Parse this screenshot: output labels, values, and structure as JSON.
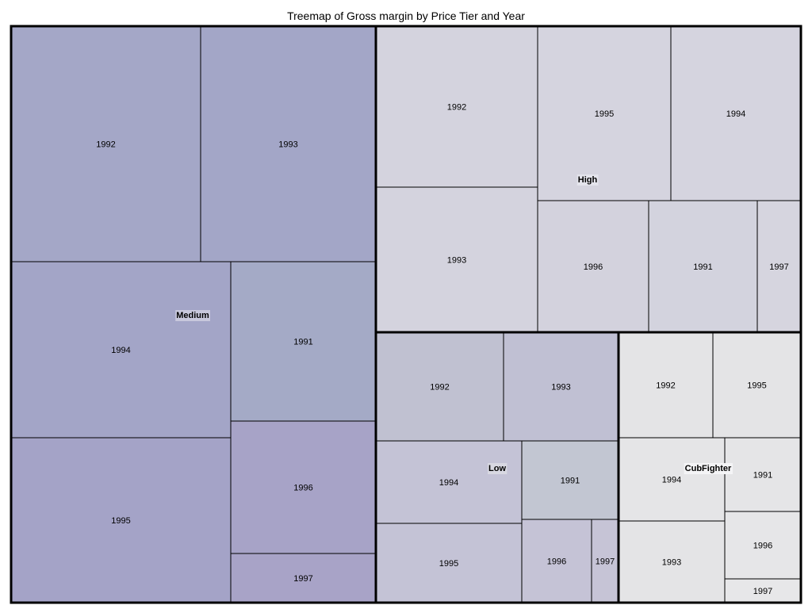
{
  "title": "Treemap of Gross margin by Price Tier and Year",
  "chart_data": {
    "type": "treemap",
    "title": "Treemap of Gross margin by Price Tier and Year",
    "groups": [
      {
        "name": "Medium",
        "label_bg": "#c8c8dc",
        "cells": [
          {
            "label": "1992",
            "value": 7.1,
            "color": "#a4a7c7"
          },
          {
            "label": "1993",
            "value": 6.6,
            "color": "#a3a6c7"
          },
          {
            "label": "1994",
            "value": 6.1,
            "color": "#a3a5c7"
          },
          {
            "label": "1991",
            "value": 3.6,
            "color": "#a4aac6"
          },
          {
            "label": "1995",
            "value": 6.0,
            "color": "#a4a3c7"
          },
          {
            "label": "1996",
            "value": 3.0,
            "color": "#a7a3c7"
          },
          {
            "label": "1997",
            "value": 1.1,
            "color": "#a8a3c7"
          }
        ]
      },
      {
        "name": "High",
        "label_bg": "#e4e4ec",
        "cells": [
          {
            "label": "1992",
            "value": 4.1,
            "color": "#d4d3de"
          },
          {
            "label": "1993",
            "value": 3.6,
            "color": "#d4d3de"
          },
          {
            "label": "1995",
            "value": 3.7,
            "color": "#d5d4df"
          },
          {
            "label": "1994",
            "value": 3.6,
            "color": "#d5d4df"
          },
          {
            "label": "1996",
            "value": 2.3,
            "color": "#d3d2dd"
          },
          {
            "label": "1991",
            "value": 2.3,
            "color": "#d3d3de"
          },
          {
            "label": "1997",
            "value": 0.9,
            "color": "#d6d5df"
          }
        ]
      },
      {
        "name": "Low",
        "label_bg": "#d8d8e2",
        "cells": [
          {
            "label": "1992",
            "value": 2.2,
            "color": "#c0c1d1"
          },
          {
            "label": "1993",
            "value": 2.0,
            "color": "#c0c0d3"
          },
          {
            "label": "1994",
            "value": 1.9,
            "color": "#c4c3d6"
          },
          {
            "label": "1991",
            "value": 1.3,
            "color": "#c2c6d2"
          },
          {
            "label": "1995",
            "value": 1.9,
            "color": "#c4c3d6"
          },
          {
            "label": "1996",
            "value": 0.9,
            "color": "#c5c3d6"
          },
          {
            "label": "1997",
            "value": 0.3,
            "color": "#c6c4d6"
          }
        ]
      },
      {
        "name": "CubFighter",
        "label_bg": "#f4f4f6",
        "cells": [
          {
            "label": "1992",
            "value": 1.6,
            "color": "#e4e4e6"
          },
          {
            "label": "1995",
            "value": 1.5,
            "color": "#e4e4e6"
          },
          {
            "label": "1994",
            "value": 1.4,
            "color": "#e5e5e7"
          },
          {
            "label": "1991",
            "value": 0.8,
            "color": "#e5e5e7"
          },
          {
            "label": "1993",
            "value": 1.3,
            "color": "#e4e4e6"
          },
          {
            "label": "1996",
            "value": 0.8,
            "color": "#e6e6e8"
          },
          {
            "label": "1997",
            "value": 0.3,
            "color": "#e7e7e9"
          }
        ]
      }
    ]
  }
}
